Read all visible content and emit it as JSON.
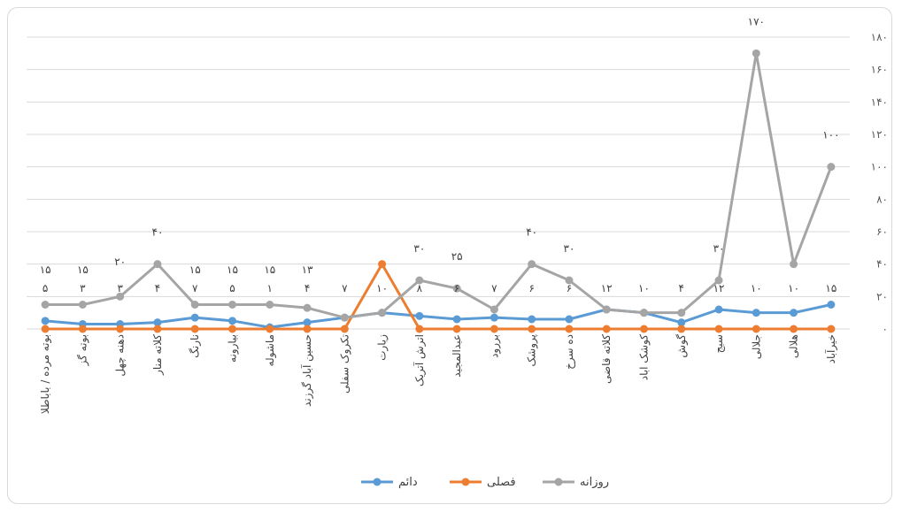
{
  "chart_data": {
    "type": "line",
    "categories": [
      "بوته مرده / باباطلا",
      "بوته گز",
      "دهنه چهل",
      "کلاته منار",
      "نارنگ",
      "بیارونه",
      "ماشوله",
      "حسین آباد گرزند",
      "تکروک سفلی",
      "زیارت",
      "اترش آتریک",
      "عبدالمجید",
      "بررود",
      "پروشک",
      "ده سرخ",
      "کلاته قاضی",
      "کوشک اباد",
      "گوش",
      "سبج",
      "جلالی",
      "هلالی",
      "خیرآباد"
    ],
    "series": [
      {
        "name": "دائم",
        "color": "#5b9bd5",
        "values": [
          5,
          3,
          3,
          4,
          7,
          5,
          1,
          4,
          7,
          10,
          8,
          6,
          7,
          6,
          6,
          12,
          10,
          4,
          12,
          10,
          10,
          15
        ],
        "labels": [
          "۵",
          "۳",
          "۳",
          "۴",
          "۷",
          "۵",
          "۱",
          "۴",
          "۷",
          "۱۰",
          "۸",
          "۶",
          "۷",
          "۶",
          "۶",
          "۱۲",
          "۱۰",
          "۴",
          "۱۲",
          "۱۰",
          "۱۰",
          "۱۵"
        ]
      },
      {
        "name": "فصلی",
        "color": "#ed7d31",
        "values": [
          0,
          0,
          0,
          0,
          0,
          0,
          0,
          0,
          0,
          40,
          0,
          0,
          0,
          0,
          0,
          0,
          0,
          0,
          0,
          0,
          0,
          0
        ],
        "labels": []
      },
      {
        "name": "روزانه",
        "color": "#a5a5a5",
        "values": [
          15,
          15,
          20,
          40,
          15,
          15,
          15,
          13,
          7,
          10,
          30,
          25,
          12,
          40,
          30,
          12,
          10,
          10,
          30,
          170,
          40,
          100
        ],
        "labels": [
          "۱۵",
          "۱۵",
          "۲۰",
          "۴۰",
          "۱۵",
          "۱۵",
          "۱۵",
          "۱۳",
          "",
          "",
          "۳۰",
          "۲۵",
          "",
          "۴۰",
          "۳۰",
          "",
          "",
          "",
          "۳۰",
          "۱۷۰",
          "",
          "۱۰۰"
        ]
      }
    ],
    "yTickLabels": [
      "۰",
      "۲۰",
      "۴۰",
      "۶۰",
      "۸۰",
      "۱۰۰",
      "۱۲۰",
      "۱۴۰",
      "۱۶۰",
      "۱۸۰"
    ],
    "ylim": [
      0,
      180
    ],
    "grid": true,
    "legend_position": "bottom"
  }
}
